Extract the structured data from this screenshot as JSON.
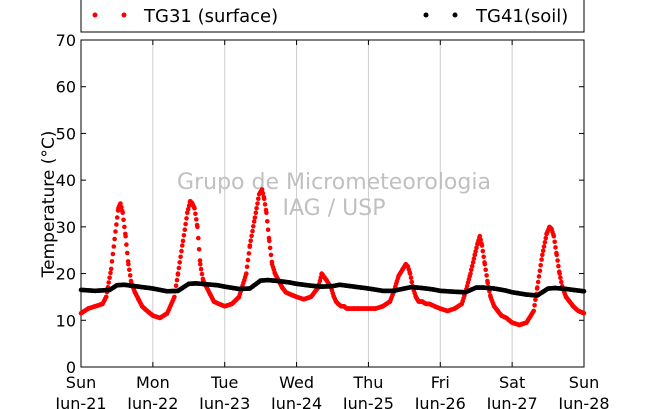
{
  "chart_data": {
    "type": "scatter",
    "ylabel": "Temperature (°C)",
    "ylim": [
      0,
      70
    ],
    "yticks": [
      0,
      10,
      20,
      30,
      40,
      50,
      60,
      70
    ],
    "xlim": [
      0,
      7
    ],
    "xticks": [
      {
        "day": "Sun",
        "date": "Jun-21"
      },
      {
        "day": "Mon",
        "date": "Jun-22"
      },
      {
        "day": "Tue",
        "date": "Jun-23"
      },
      {
        "day": "Wed",
        "date": "Jun-24"
      },
      {
        "day": "Thu",
        "date": "Jun-25"
      },
      {
        "day": "Fri",
        "date": "Jun-26"
      },
      {
        "day": "Sat",
        "date": "Jun-27"
      },
      {
        "day": "Sun",
        "date": "Jun-28"
      }
    ],
    "grid": "vertical",
    "legend": "top",
    "watermark": [
      "Grupo de Micrometeorologia",
      "IAG / USP"
    ],
    "series": [
      {
        "name": "TG31 (surface)",
        "color": "#ff0000",
        "x": [
          0,
          0.1,
          0.2,
          0.3,
          0.35,
          0.42,
          0.48,
          0.52,
          0.55,
          0.58,
          0.62,
          0.66,
          0.7,
          0.75,
          0.8,
          0.85,
          0.92,
          1.0,
          1.1,
          1.2,
          1.3,
          1.35,
          1.42,
          1.48,
          1.52,
          1.55,
          1.58,
          1.62,
          1.66,
          1.7,
          1.75,
          1.8,
          1.85,
          1.92,
          2.0,
          2.1,
          2.2,
          2.3,
          2.35,
          2.42,
          2.48,
          2.52,
          2.55,
          2.58,
          2.62,
          2.66,
          2.7,
          2.75,
          2.8,
          2.85,
          2.92,
          3.0,
          3.1,
          3.2,
          3.3,
          3.35,
          3.42,
          3.48,
          3.52,
          3.55,
          3.58,
          3.62,
          3.66,
          3.7,
          3.75,
          3.8,
          3.85,
          3.92,
          4.0,
          4.1,
          4.2,
          4.3,
          4.35,
          4.42,
          4.48,
          4.52,
          4.55,
          4.58,
          4.62,
          4.66,
          4.7,
          4.75,
          4.8,
          4.85,
          4.92,
          5.0,
          5.1,
          5.2,
          5.3,
          5.35,
          5.42,
          5.48,
          5.52,
          5.55,
          5.58,
          5.62,
          5.66,
          5.7,
          5.75,
          5.8,
          5.85,
          5.92,
          6.0,
          6.1,
          6.2,
          6.3,
          6.35,
          6.42,
          6.48,
          6.52,
          6.55,
          6.58,
          6.62,
          6.66,
          6.7,
          6.75,
          6.8,
          6.85,
          6.92,
          7.0
        ],
        "y": [
          11.5,
          12.5,
          13.0,
          13.5,
          15.0,
          21.0,
          29.0,
          34.0,
          35.0,
          33.0,
          28.0,
          22.0,
          18.0,
          16.0,
          14.5,
          13.0,
          12.0,
          11.0,
          10.5,
          11.5,
          15.0,
          20.0,
          27.0,
          33.0,
          35.5,
          35.0,
          34.0,
          30.0,
          22.0,
          18.5,
          17.0,
          15.5,
          14.0,
          13.5,
          13.0,
          13.5,
          15.0,
          20.0,
          26.0,
          32.0,
          37.0,
          38.0,
          36.0,
          33.0,
          27.0,
          22.0,
          20.0,
          18.5,
          17.0,
          16.0,
          15.5,
          15.0,
          14.5,
          15.0,
          17.0,
          20.0,
          18.5,
          17.0,
          15.0,
          14.0,
          13.5,
          13.0,
          13.0,
          12.5,
          12.5,
          12.5,
          12.5,
          12.5,
          12.5,
          12.5,
          13.0,
          14.0,
          16.0,
          19.5,
          21.0,
          22.0,
          21.5,
          20.0,
          17.0,
          15.0,
          14.0,
          14.0,
          13.5,
          13.5,
          13.0,
          12.5,
          12.0,
          12.5,
          13.5,
          16.0,
          20.0,
          24.0,
          26.5,
          28.0,
          26.0,
          22.0,
          18.0,
          15.0,
          13.0,
          12.0,
          11.0,
          10.5,
          9.5,
          9.0,
          9.5,
          12.0,
          17.0,
          24.0,
          28.5,
          30.0,
          29.5,
          28.0,
          24.0,
          20.0,
          17.0,
          15.0,
          14.0,
          13.0,
          12.0,
          11.5
        ]
      },
      {
        "name": "TG41(soil)",
        "color": "#000000",
        "x": [
          0,
          0.2,
          0.4,
          0.5,
          0.6,
          0.75,
          0.9,
          1.0,
          1.2,
          1.35,
          1.5,
          1.6,
          1.75,
          1.9,
          2.0,
          2.2,
          2.35,
          2.5,
          2.6,
          2.75,
          2.9,
          3.0,
          3.2,
          3.35,
          3.5,
          3.6,
          3.75,
          3.9,
          4.0,
          4.2,
          4.35,
          4.5,
          4.6,
          4.75,
          4.9,
          5.0,
          5.2,
          5.35,
          5.5,
          5.6,
          5.75,
          5.9,
          6.0,
          6.2,
          6.35,
          6.5,
          6.6,
          6.75,
          6.9,
          7.0
        ],
        "y": [
          16.5,
          16.3,
          16.5,
          17.5,
          17.6,
          17.3,
          17.0,
          16.8,
          16.2,
          16.3,
          17.8,
          17.9,
          17.7,
          17.5,
          17.2,
          16.7,
          16.8,
          18.5,
          18.6,
          18.4,
          18.1,
          17.8,
          17.4,
          17.2,
          17.3,
          17.6,
          17.3,
          17.0,
          16.8,
          16.3,
          16.3,
          16.8,
          17.1,
          16.9,
          16.6,
          16.3,
          16.1,
          16.0,
          17.0,
          17.0,
          16.8,
          16.4,
          16.0,
          15.5,
          15.3,
          16.8,
          16.9,
          16.7,
          16.4,
          16.2
        ]
      }
    ]
  }
}
